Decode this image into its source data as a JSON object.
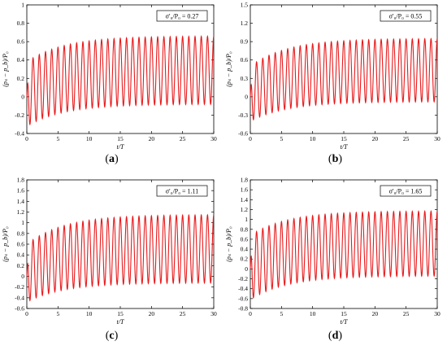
{
  "chart_data": [
    {
      "panel": "a",
      "caption_letter": "a",
      "type": "line",
      "legend": "σ′₀/P₀ = 0.27",
      "legend_value": 0.27,
      "xlabel": "t/T",
      "ylabel": "(pₛ − p_b)/P₀",
      "xlim": [
        0,
        30
      ],
      "ylim": [
        -0.4,
        1.0
      ],
      "xticks": [
        0,
        5,
        10,
        15,
        20,
        25,
        30
      ],
      "yticks": [
        -0.4,
        -0.2,
        0,
        0.2,
        0.4,
        0.6,
        0.8,
        1.0
      ],
      "ytick_labels": [
        "-0.4",
        "-0.2",
        "0",
        "0.2",
        "0.4",
        "0.6",
        "0.8",
        "1"
      ],
      "series": [
        {
          "color": "#e8191b",
          "cycles": 30,
          "start_value": 0.0,
          "max_start": 0.38,
          "max_end": 0.66,
          "min_start": -0.32,
          "min_end": -0.08
        }
      ],
      "grid": false
    },
    {
      "panel": "b",
      "caption_letter": "b",
      "type": "line",
      "legend": "σ′₀/P₀ = 0.55",
      "legend_value": 0.55,
      "xlabel": "t/T",
      "ylabel": "(pₛ − p_b)/P₀",
      "xlim": [
        0,
        30
      ],
      "ylim": [
        -0.6,
        1.5
      ],
      "xticks": [
        0,
        5,
        10,
        15,
        20,
        25,
        30
      ],
      "yticks": [
        -0.6,
        -0.3,
        0,
        0.3,
        0.6,
        0.9,
        1.2,
        1.5
      ],
      "ytick_labels": [
        "-0.6",
        "-0.3",
        "0",
        "0.3",
        "0.6",
        "0.9",
        "1.2",
        "1.5"
      ],
      "series": [
        {
          "color": "#e8191b",
          "cycles": 30,
          "start_value": 0.0,
          "max_start": 0.5,
          "max_end": 0.95,
          "min_start": -0.4,
          "min_end": -0.08
        }
      ],
      "grid": false
    },
    {
      "panel": "c",
      "caption_letter": "c",
      "type": "line",
      "legend": "σ′₀/P₀ = 1.11",
      "legend_value": 1.11,
      "xlabel": "t/T",
      "ylabel": "(pₛ − p_b)/P₀",
      "xlim": [
        0,
        30
      ],
      "ylim": [
        -0.6,
        1.8
      ],
      "xticks": [
        0,
        5,
        10,
        15,
        20,
        25,
        30
      ],
      "yticks": [
        -0.6,
        -0.4,
        -0.2,
        0,
        0.2,
        0.4,
        0.6,
        0.8,
        1.0,
        1.2,
        1.4,
        1.6,
        1.8
      ],
      "ytick_labels": [
        "-0.6",
        "-0.4",
        "-0.2",
        "0",
        "0.2",
        "0.4",
        "0.6",
        "0.8",
        "1",
        "1.2",
        "1.4",
        "1.6",
        "1.8"
      ],
      "series": [
        {
          "color": "#e8191b",
          "cycles": 30,
          "start_value": 0.0,
          "max_start": 0.6,
          "max_end": 1.15,
          "min_start": -0.48,
          "min_end": -0.12
        }
      ],
      "grid": false
    },
    {
      "panel": "d",
      "caption_letter": "d",
      "type": "line",
      "legend": "σ′₀/P₀ = 1.65",
      "legend_value": 1.65,
      "xlabel": "t/T",
      "ylabel": "(pₛ − p_b)/P₀",
      "xlim": [
        0,
        30
      ],
      "ylim": [
        -0.8,
        1.8
      ],
      "xticks": [
        0,
        5,
        10,
        15,
        20,
        25,
        30
      ],
      "yticks": [
        -0.8,
        -0.6,
        -0.4,
        -0.2,
        0,
        0.2,
        0.4,
        0.6,
        0.8,
        1.0,
        1.2,
        1.4,
        1.6,
        1.8
      ],
      "ytick_labels": [
        "-0.8",
        "-0.6",
        "-0.4",
        "-0.2",
        "0",
        "0.2",
        "0.4",
        "0.6",
        "0.8",
        "1",
        "1.2",
        "1.4",
        "1.6",
        "1.8"
      ],
      "series": [
        {
          "color": "#e8191b",
          "cycles": 30,
          "start_value": 0.0,
          "max_start": 0.68,
          "max_end": 1.17,
          "min_start": -0.62,
          "min_end": -0.14
        }
      ],
      "grid": false
    }
  ]
}
